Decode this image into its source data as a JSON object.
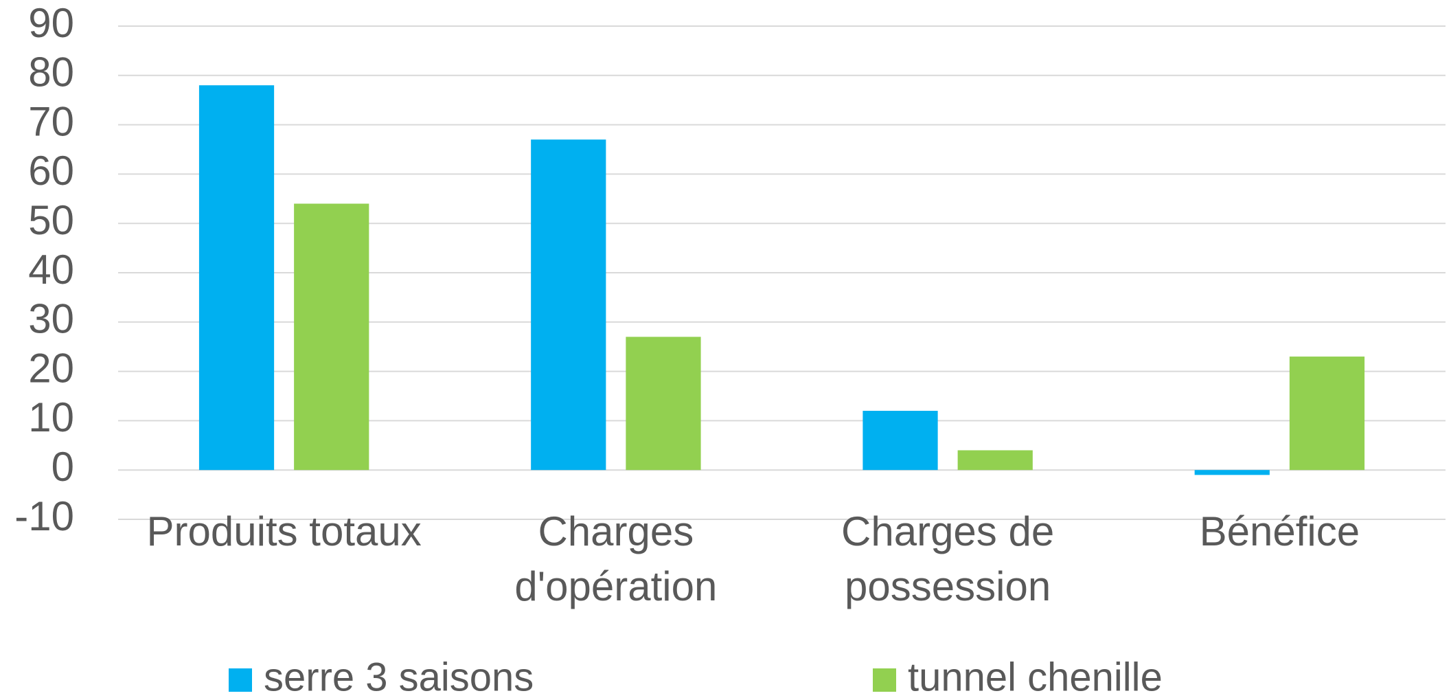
{
  "chart_data": {
    "type": "bar",
    "categories": [
      "Produits totaux",
      "Charges d'opération",
      "Charges de possession",
      "Bénéfice"
    ],
    "series": [
      {
        "name": "serre 3 saisons",
        "color": "#00b0f0",
        "values": [
          78,
          67,
          12,
          -1
        ]
      },
      {
        "name": "tunnel chenille",
        "color": "#92d050",
        "values": [
          54,
          27,
          4,
          23
        ]
      }
    ],
    "ylim": [
      -10,
      90
    ],
    "yticks": [
      -10,
      0,
      10,
      20,
      30,
      40,
      50,
      60,
      70,
      80,
      90
    ],
    "grid": true,
    "legend": "bottom"
  }
}
